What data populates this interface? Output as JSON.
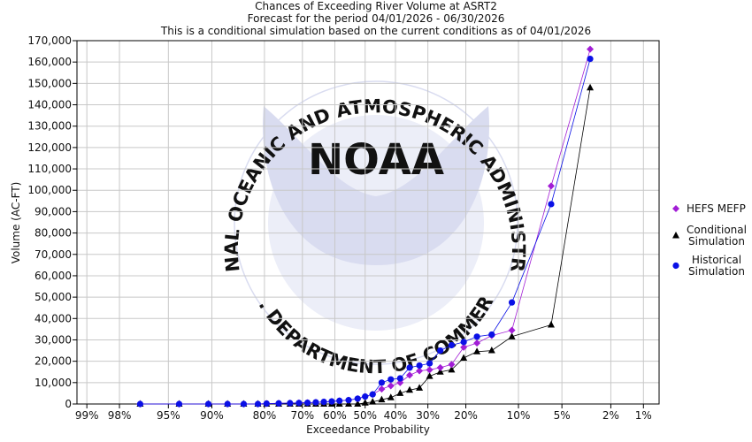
{
  "colors": {
    "hefs": "#a21dd6",
    "conditional": "#000000",
    "historical": "#0a10e6",
    "watermark": "#d9dcf0",
    "grid": "#c8c8c8"
  },
  "watermark": {
    "agency": "NOAA",
    "ring_top": "NATIONAL OCEANIC AND ATMOSPHERIC ADMINISTRATION",
    "ring_bottom": "U.S. DEPARTMENT OF COMMERCE"
  },
  "chart_data": {
    "type": "line",
    "title": "Chances of Exceeding River Volume at ASRT2",
    "subtitle1": "Forecast for the period 04/01/2026 - 06/30/2026",
    "subtitle2": "This is a conditional simulation based on the current conditions as of 04/01/2026",
    "xlabel": "Exceedance Probability",
    "ylabel": "Volume (AC-FT)",
    "x_scale": "normal-probability",
    "xlim": [
      99.2,
      0.7
    ],
    "ylim": [
      0,
      170000
    ],
    "y_ticks": [
      0,
      10000,
      20000,
      30000,
      40000,
      50000,
      60000,
      70000,
      80000,
      90000,
      100000,
      110000,
      120000,
      130000,
      140000,
      150000,
      160000,
      170000
    ],
    "y_tick_labels": [
      "0",
      "10,000",
      "20,000",
      "30,000",
      "40,000",
      "50,000",
      "60,000",
      "70,000",
      "80,000",
      "90,000",
      "100,000",
      "110,000",
      "120,000",
      "130,000",
      "140,000",
      "150,000",
      "160,000",
      "170,000"
    ],
    "x_ticks": [
      99,
      98,
      95,
      90,
      80,
      70,
      60,
      50,
      40,
      30,
      20,
      10,
      5,
      2,
      1
    ],
    "x_tick_labels": [
      "99%",
      "98%",
      "95%",
      "90%",
      "80%",
      "70%",
      "60%",
      "50%",
      "40%",
      "30%",
      "20%",
      "10%",
      "5%",
      "2%",
      "1%"
    ],
    "legend_position": "right",
    "series": [
      {
        "name": "HEFS MEFP",
        "marker": "diamond",
        "color_key": "hefs",
        "x": [
          97.0,
          94.0,
          90.5,
          87.5,
          84.5,
          81.5,
          79.5,
          76.5,
          73.5,
          71.0,
          68.5,
          66.0,
          63.5,
          61.0,
          58.5,
          55.5,
          52.5,
          50.0,
          47.5,
          44.5,
          41.5,
          38.5,
          35.5,
          32.5,
          29.5,
          26.5,
          23.5,
          20.5,
          17.5,
          14.5,
          11.0,
          6.0,
          3.0
        ],
        "y": [
          0,
          0,
          0,
          0,
          0,
          0,
          200,
          300,
          400,
          500,
          600,
          800,
          1000,
          1200,
          1500,
          1800,
          2500,
          3500,
          4500,
          7000,
          8500,
          10000,
          13500,
          15500,
          16000,
          17000,
          18500,
          26500,
          28500,
          32000,
          34500,
          102000,
          166000
        ]
      },
      {
        "name": "Conditional Simulation",
        "marker": "triangle",
        "color_key": "conditional",
        "x": [
          97.0,
          94.0,
          90.5,
          87.5,
          84.5,
          81.5,
          79.5,
          76.5,
          73.5,
          71.0,
          68.5,
          66.0,
          63.5,
          61.0,
          58.5,
          55.5,
          52.5,
          50.0,
          47.5,
          44.5,
          41.5,
          38.5,
          35.5,
          32.5,
          29.5,
          26.5,
          23.5,
          20.5,
          17.5,
          14.5,
          11.0,
          6.0,
          3.0
        ],
        "y": [
          0,
          0,
          0,
          0,
          0,
          0,
          0,
          0,
          0,
          0,
          0,
          0,
          0,
          0,
          0,
          0,
          0,
          500,
          1000,
          2000,
          3000,
          5000,
          6500,
          7500,
          13000,
          15000,
          16000,
          21500,
          24500,
          25000,
          31500,
          37000,
          148000
        ]
      },
      {
        "name": "Historical Simulation",
        "marker": "circle",
        "color_key": "historical",
        "x": [
          97.0,
          94.0,
          90.5,
          87.5,
          84.5,
          81.5,
          79.5,
          76.5,
          73.5,
          71.0,
          68.5,
          66.0,
          63.5,
          61.0,
          58.5,
          55.5,
          52.5,
          50.0,
          47.5,
          44.5,
          41.5,
          38.5,
          35.5,
          32.5,
          29.5,
          26.5,
          23.5,
          20.5,
          17.5,
          14.5,
          11.0,
          6.0,
          3.0
        ],
        "y": [
          0,
          0,
          0,
          0,
          0,
          0,
          200,
          300,
          400,
          500,
          600,
          800,
          1000,
          1200,
          1500,
          1800,
          2500,
          3500,
          4500,
          10000,
          11500,
          12000,
          17000,
          18000,
          19000,
          25000,
          27500,
          29000,
          31500,
          32500,
          47500,
          93500,
          161500
        ]
      }
    ],
    "legend_lines": [
      [
        "HEFS MEFP"
      ],
      [
        "Conditional",
        "Simulation"
      ],
      [
        "Historical",
        "Simulation"
      ]
    ]
  }
}
